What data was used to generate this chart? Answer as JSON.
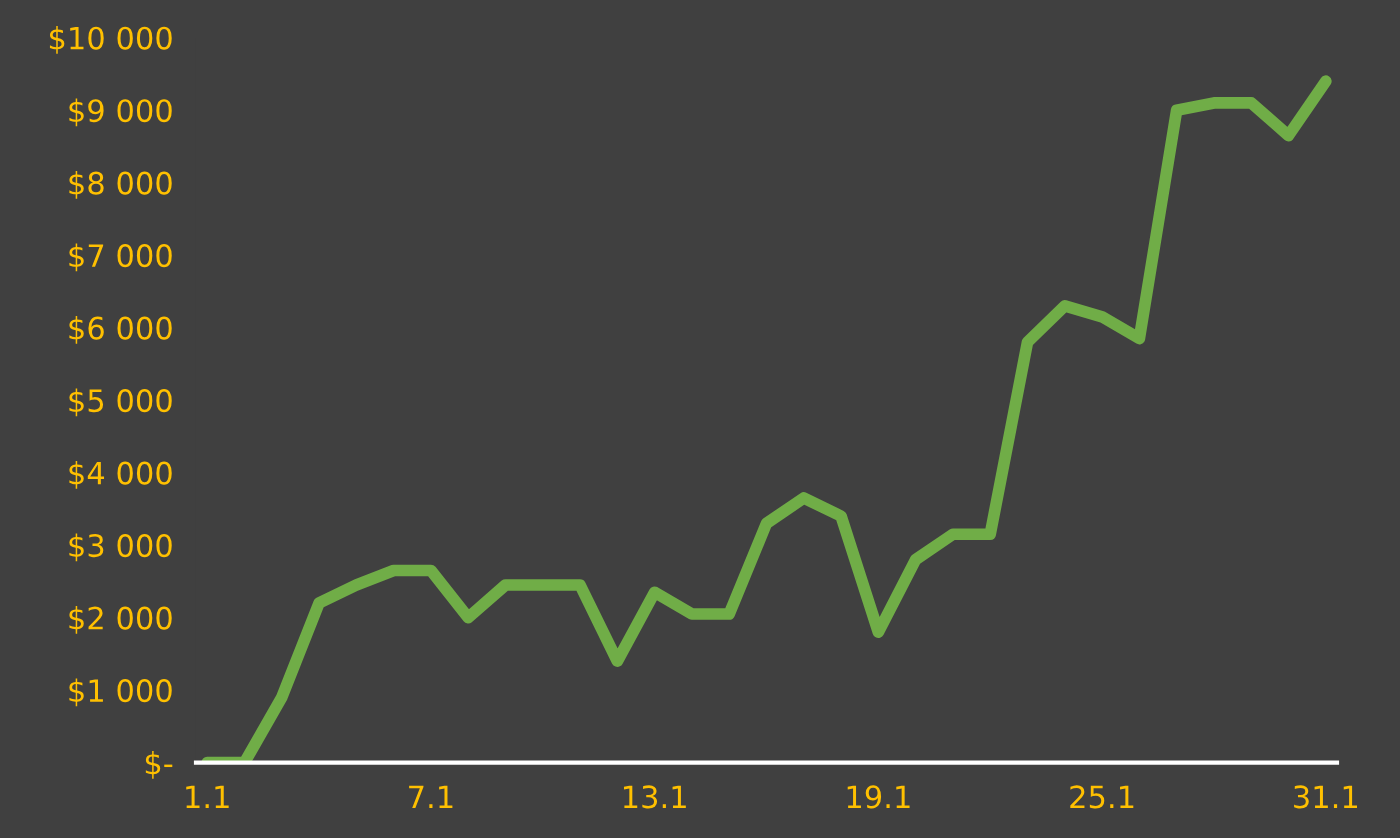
{
  "chart_data": {
    "type": "line",
    "categories": [
      "1.1",
      null,
      null,
      null,
      null,
      null,
      "7.1",
      null,
      null,
      null,
      null,
      null,
      "13.1",
      null,
      null,
      null,
      null,
      null,
      "19.1",
      null,
      null,
      null,
      null,
      null,
      "25.1",
      null,
      null,
      null,
      null,
      null,
      "31.1"
    ],
    "series": [
      {
        "color": "#70ad47",
        "values": [
          0,
          0,
          900,
          2200,
          2450,
          2650,
          2650,
          2000,
          2450,
          2450,
          2450,
          1400,
          2350,
          2050,
          2050,
          3300,
          3650,
          3400,
          1800,
          2800,
          3150,
          3150,
          5800,
          6300,
          6150,
          5850,
          9000,
          9100,
          9100,
          8650,
          9400
        ]
      }
    ],
    "ylim": [
      0,
      10000
    ],
    "yticks": [
      {
        "value": 0,
        "label": "$-"
      },
      {
        "value": 1000,
        "label": "$1 000"
      },
      {
        "value": 2000,
        "label": "$2 000"
      },
      {
        "value": 3000,
        "label": "$3 000"
      },
      {
        "value": 4000,
        "label": "$4 000"
      },
      {
        "value": 5000,
        "label": "$5 000"
      },
      {
        "value": 6000,
        "label": "$6 000"
      },
      {
        "value": 7000,
        "label": "$7 000"
      },
      {
        "value": 8000,
        "label": "$8 000"
      },
      {
        "value": 9000,
        "label": "$9 000"
      },
      {
        "value": 10000,
        "label": "$10 000"
      }
    ],
    "grid": false,
    "marker": "none",
    "line_style": "solid"
  }
}
